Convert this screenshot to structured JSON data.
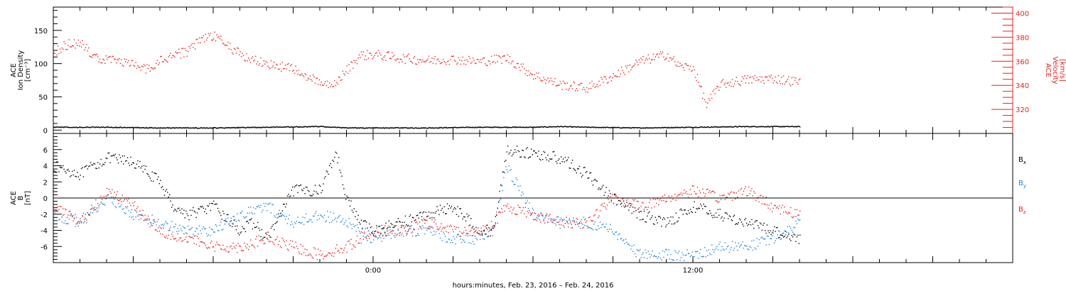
{
  "xlabel": "hours:minutes, Feb. 23, 2016 – Feb. 24, 2016",
  "colors": {
    "black": "#000000",
    "red": "#e8201c",
    "blue": "#1f7fd6"
  },
  "chart_data": [
    {
      "type": "scatter",
      "panel": "top",
      "ylabel_left": [
        "ACE",
        "Ion Density",
        "[cm⁻³]"
      ],
      "ylabel_right": [
        "ACE",
        "Velocity",
        "[km/s]"
      ],
      "ylim_left": [
        -5,
        185
      ],
      "ylim_right": [
        300,
        405
      ],
      "xlim_hours": [
        -12,
        24
      ],
      "yticks_left": [
        0,
        50,
        100,
        150
      ],
      "yticks_right": [
        320,
        340,
        360,
        380,
        400
      ],
      "xticks": [
        {
          "h": 0,
          "label": "0:00"
        },
        {
          "h": 12,
          "label": "12:00"
        }
      ],
      "grid": false,
      "series": [
        {
          "name": "Ion Density",
          "axis": "left",
          "color": "black",
          "x": [
            -12,
            -10,
            -8,
            -6,
            -4,
            -2,
            -1,
            0,
            2,
            4,
            6,
            7,
            8,
            10,
            12,
            14,
            16
          ],
          "y": [
            5,
            5,
            4,
            4,
            5,
            6,
            4,
            4,
            4,
            5,
            5,
            6,
            5,
            4,
            5,
            6,
            6
          ]
        },
        {
          "name": "Velocity",
          "axis": "right",
          "color": "red",
          "x": [
            -12,
            -11.5,
            -11,
            -10.5,
            -10,
            -9.5,
            -9,
            -8.5,
            -8,
            -7.5,
            -7,
            -6.5,
            -6,
            -5.5,
            -5,
            -4.5,
            -4,
            -3.5,
            -3,
            -2.5,
            -2,
            -1.5,
            -1,
            -0.5,
            0,
            1,
            2,
            3,
            4,
            5,
            6,
            7,
            8,
            9,
            10,
            11,
            11.5,
            12,
            12.5,
            13,
            14,
            15,
            16
          ],
          "y": [
            368,
            374,
            376,
            364,
            362,
            361,
            357,
            354,
            361,
            366,
            368,
            378,
            382,
            374,
            366,
            362,
            358,
            356,
            354,
            348,
            342,
            340,
            353,
            365,
            366,
            363,
            361,
            362,
            360,
            363,
            349,
            341,
            338,
            348,
            360,
            366,
            356,
            355,
            324,
            341,
            345,
            346,
            343
          ]
        }
      ]
    },
    {
      "type": "scatter",
      "panel": "bottom",
      "ylabel_left": [
        "ACE",
        "B",
        "[nT]"
      ],
      "ylim": [
        -8,
        8
      ],
      "xlim_hours": [
        -12,
        24
      ],
      "yticks": [
        -6,
        -4,
        -2,
        0,
        2,
        4,
        6
      ],
      "xticks": [
        {
          "h": 0,
          "label": "0:00"
        },
        {
          "h": 12,
          "label": "12:00"
        }
      ],
      "zero_line": true,
      "grid": false,
      "series": [
        {
          "name": "B",
          "subscript": "x",
          "color": "black",
          "x": [
            -12,
            -11,
            -10,
            -9,
            -8,
            -7.5,
            -7,
            -6,
            -5,
            -4.5,
            -4,
            -3,
            -2,
            -1.4,
            -1,
            -0.5,
            0,
            1,
            2,
            3,
            4,
            4.5,
            5,
            6,
            7,
            8,
            9,
            10,
            11,
            12,
            13,
            14,
            15,
            16
          ],
          "y": [
            4,
            3,
            5,
            4.5,
            2,
            -1,
            -2,
            -1,
            -4,
            -3,
            -5,
            1,
            1,
            5.8,
            0,
            -3,
            -4,
            -3,
            -2,
            -1,
            -4,
            -4,
            6,
            5.5,
            5,
            3,
            0,
            -2,
            -3,
            -1,
            -2,
            -3,
            -4,
            -5
          ]
        },
        {
          "name": "B",
          "subscript": "y",
          "color": "blue",
          "x": [
            -12,
            -11,
            -10,
            -9,
            -8,
            -7,
            -6,
            -5,
            -4,
            -3,
            -2,
            -1,
            0,
            1,
            2,
            3,
            4,
            4.5,
            5,
            6,
            7,
            8,
            9,
            10,
            11,
            12,
            13,
            14,
            15,
            16
          ],
          "y": [
            -2,
            -3,
            0,
            -2,
            -3,
            -4,
            -4,
            -2,
            -1,
            -3,
            -2,
            -3,
            -5,
            -4,
            -4,
            -5,
            -5,
            -4,
            4,
            -2,
            -3,
            -3,
            -4,
            -7,
            -7,
            -7,
            -6,
            -6,
            -5,
            -3
          ]
        },
        {
          "name": "B",
          "subscript": "z",
          "color": "red",
          "x": [
            -12,
            -11,
            -10,
            -9,
            -8,
            -7,
            -6,
            -5,
            -4,
            -3,
            -2,
            -1,
            0,
            1,
            2,
            3,
            4,
            4.5,
            5,
            6,
            7,
            8,
            9,
            10,
            11,
            12,
            13,
            14,
            15,
            16
          ],
          "y": [
            -1,
            -3,
            1,
            -1,
            -4,
            -5,
            -6,
            -6,
            -5,
            -6,
            -7,
            -6,
            -4,
            -4,
            -3,
            -4,
            -4,
            -3,
            -1,
            -2,
            -3,
            -3,
            0,
            -1,
            0,
            1,
            0,
            1,
            -1,
            -2
          ]
        }
      ]
    }
  ]
}
